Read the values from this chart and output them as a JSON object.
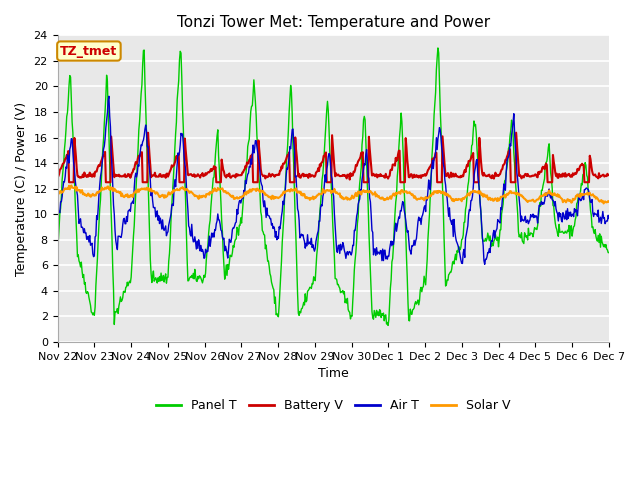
{
  "title": "Tonzi Tower Met: Temperature and Power",
  "xlabel": "Time",
  "ylabel": "Temperature (C) / Power (V)",
  "ylim": [
    0,
    24
  ],
  "yticks": [
    0,
    2,
    4,
    6,
    8,
    10,
    12,
    14,
    16,
    18,
    20,
    22,
    24
  ],
  "xtick_labels": [
    "Nov 22",
    "Nov 23",
    "Nov 24",
    "Nov 25",
    "Nov 26",
    "Nov 27",
    "Nov 28",
    "Nov 29",
    "Nov 30",
    "Dec 1",
    "Dec 2",
    "Dec 3",
    "Dec 4",
    "Dec 5",
    "Dec 6",
    "Dec 7"
  ],
  "colors": {
    "panel_t": "#00cc00",
    "battery_v": "#cc0000",
    "air_t": "#0000cc",
    "solar_v": "#ff9900"
  },
  "legend_labels": [
    "Panel T",
    "Battery V",
    "Air T",
    "Solar V"
  ],
  "fig_bg_color": "#ffffff",
  "plot_bg": "#e8e8e8",
  "grid_color": "#ffffff",
  "annotation_text": "TZ_tmet",
  "annotation_bg": "#ffffcc",
  "annotation_border": "#cc8800",
  "annotation_text_color": "#cc0000",
  "title_fontsize": 11,
  "axis_fontsize": 9,
  "tick_fontsize": 8,
  "n_days": 15,
  "pts_per_day": 48
}
